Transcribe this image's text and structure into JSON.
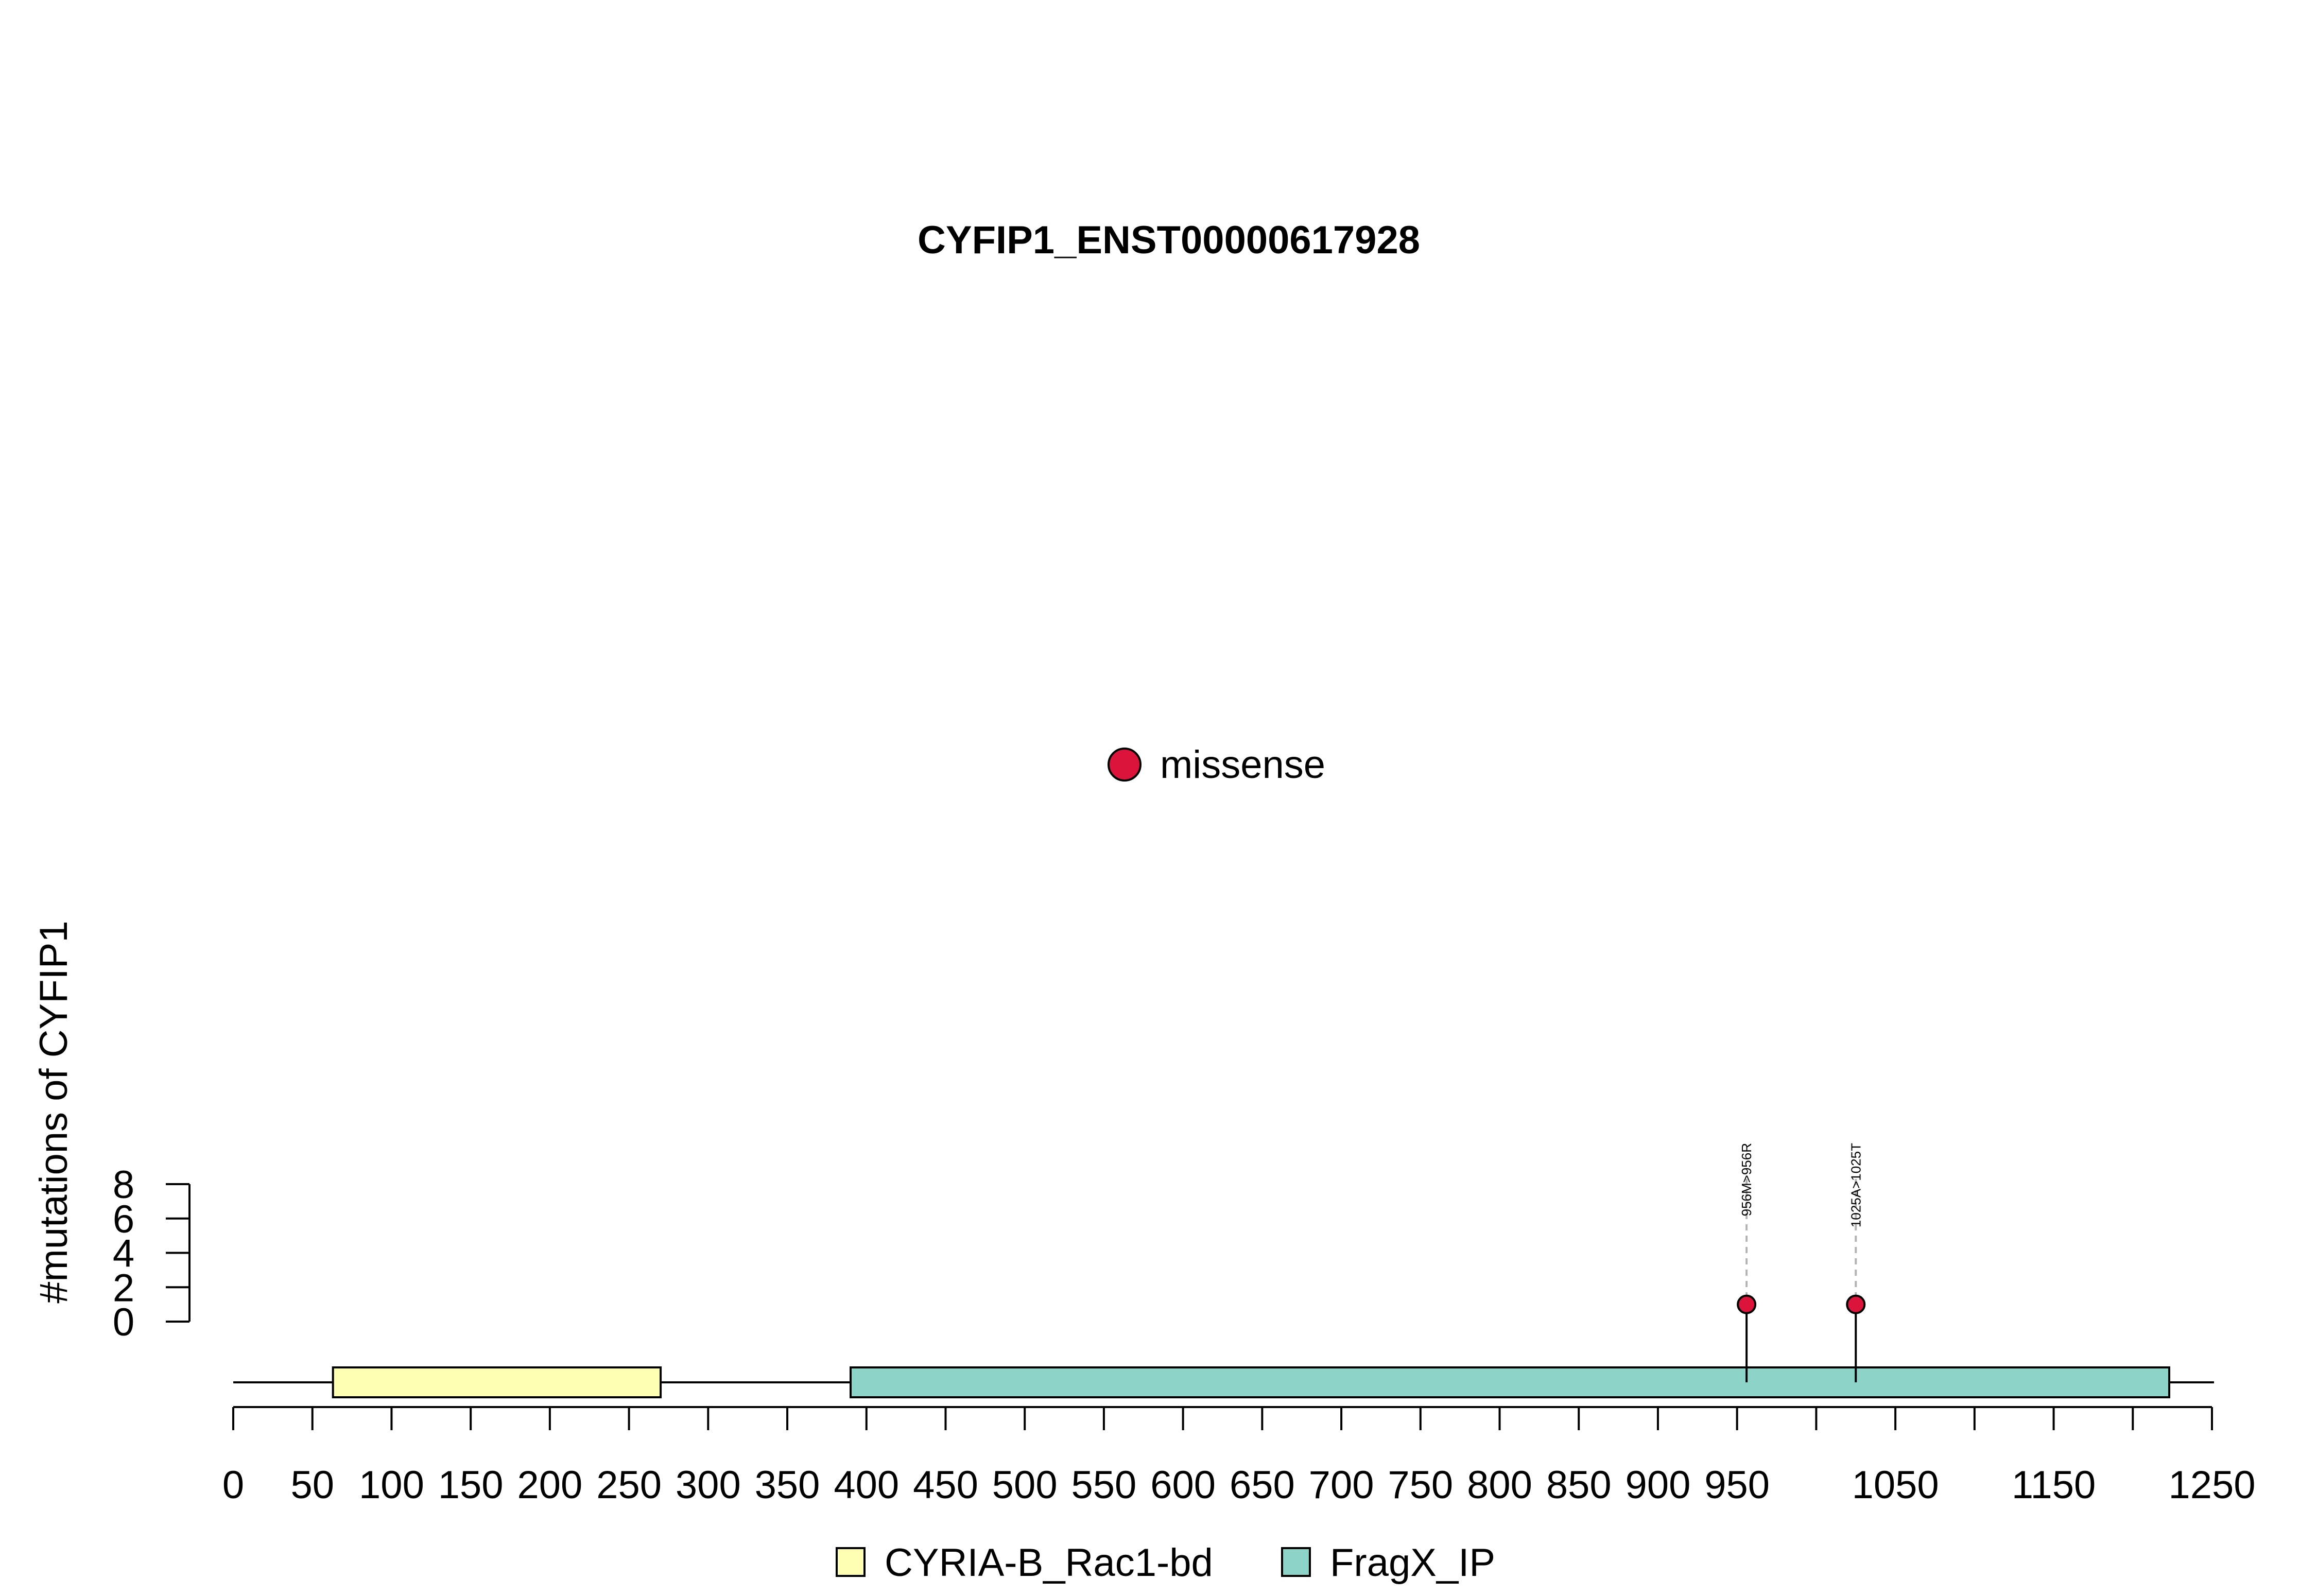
{
  "chart_data": {
    "type": "scatter",
    "title": "CYFIP1_ENST00000617928",
    "xlabel": "",
    "ylabel": "#mutations of CYFIP1",
    "xlim": [
      0,
      1250
    ],
    "ylim": [
      0,
      8
    ],
    "protein_length": 1253,
    "x_ticks": [
      0,
      50,
      100,
      150,
      200,
      250,
      300,
      350,
      400,
      450,
      500,
      550,
      600,
      650,
      700,
      750,
      800,
      850,
      900,
      950,
      1000,
      1050,
      1100,
      1150,
      1200,
      1250
    ],
    "x_tick_labels": [
      "0",
      "50",
      "100",
      "150",
      "200",
      "250",
      "300",
      "350",
      "400",
      "450",
      "500",
      "550",
      "600",
      "650",
      "700",
      "750",
      "800",
      "850",
      "900",
      "950",
      "",
      "1050",
      "",
      "1150",
      "",
      "1250"
    ],
    "y_ticks": [
      0,
      2,
      4,
      6,
      8
    ],
    "y_tick_labels": [
      "0",
      "2",
      "4",
      "6",
      "8"
    ],
    "domains": [
      {
        "name": "CYRIA-B_Rac1-bd",
        "start": 63,
        "end": 270,
        "color": "#FFFFB3"
      },
      {
        "name": "FragX_IP",
        "start": 390,
        "end": 1223,
        "color": "#8DD3C7"
      }
    ],
    "mutations": [
      {
        "position": 956,
        "count": 1,
        "label": "956M>956R",
        "type": "missense"
      },
      {
        "position": 1025,
        "count": 1,
        "label": "1025A>1025T",
        "type": "missense"
      }
    ],
    "mutation_legend": [
      {
        "name": "missense",
        "color": "#DC143C"
      }
    ],
    "domain_legend": [
      {
        "name": "CYRIA-B_Rac1-bd",
        "color": "#FFFFB3"
      },
      {
        "name": "FragX_IP",
        "color": "#8DD3C7"
      }
    ],
    "grid": false
  }
}
